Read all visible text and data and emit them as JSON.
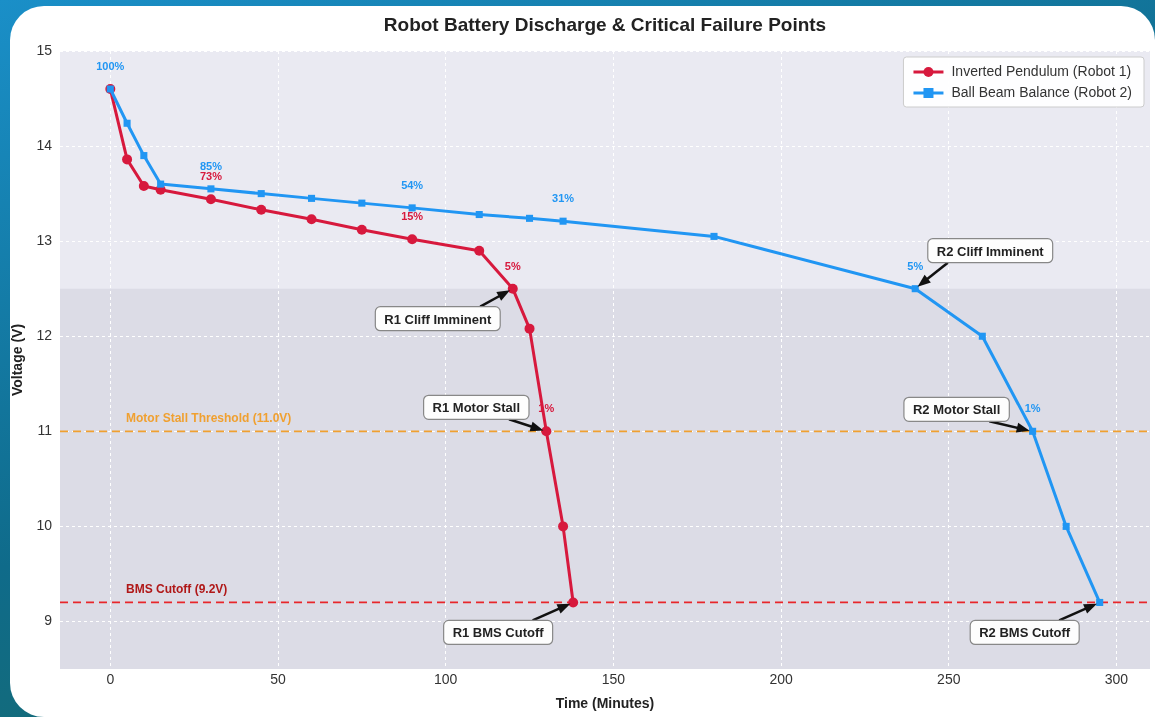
{
  "chart_data": {
    "type": "line",
    "title": "Robot Battery Discharge & Critical Failure Points",
    "xlabel": "Time (Minutes)",
    "ylabel": "Voltage (V)",
    "xlim": [
      -15,
      310
    ],
    "xticks": [
      0,
      50,
      100,
      150,
      200,
      250,
      300
    ],
    "ylim": [
      8.5,
      15
    ],
    "yticks": [
      9,
      10,
      11,
      12,
      13,
      14,
      15
    ],
    "grid": true,
    "legend": "top right",
    "line_style": "solid",
    "series": [
      {
        "name": "Inverted Pendulum (Robot 1)",
        "color": "#d7193d",
        "marker": "circle",
        "x": [
          0,
          5,
          10,
          15,
          30,
          45,
          60,
          75,
          90,
          110,
          120,
          125,
          130,
          135,
          138
        ],
        "values": [
          14.6,
          13.86,
          13.58,
          13.54,
          13.44,
          13.33,
          13.23,
          13.12,
          13.02,
          12.9,
          12.5,
          12.08,
          11.0,
          10.0,
          9.2
        ]
      },
      {
        "name": "Ball Beam Balance (Robot 2)",
        "color": "#2196f3",
        "marker": "square",
        "x": [
          0,
          5,
          10,
          15,
          30,
          45,
          60,
          75,
          90,
          110,
          125,
          135,
          180,
          240,
          260,
          275,
          285,
          295
        ],
        "values": [
          14.6,
          14.24,
          13.9,
          13.6,
          13.55,
          13.5,
          13.45,
          13.4,
          13.35,
          13.28,
          13.24,
          13.21,
          13.05,
          12.5,
          12.0,
          11.0,
          10.0,
          9.2
        ]
      }
    ],
    "ref_lines": [
      {
        "axis": "y",
        "value": 11.0,
        "label": "Motor Stall Threshold (11.0V)",
        "color": "#f0a030",
        "line_style": "dashed"
      },
      {
        "axis": "y",
        "value": 9.2,
        "label": "BMS Cutoff (9.2V)",
        "color": "#e8262b",
        "line_style": "dashed"
      }
    ],
    "bands": [
      {
        "axis": "y",
        "from": 8.5,
        "to": 12.5,
        "color": "#dcdce6"
      }
    ],
    "annotations": [
      {
        "text": "R1 Cliff Imminent",
        "x": 120,
        "y": 12.5
      },
      {
        "text": "R1 Motor Stall",
        "x": 130,
        "y": 11.0
      },
      {
        "text": "R1 BMS Cutoff",
        "x": 138,
        "y": 9.2
      },
      {
        "text": "R2 Cliff Imminent",
        "x": 240,
        "y": 12.5
      },
      {
        "text": "R2 Motor Stall",
        "x": 275,
        "y": 11.0
      },
      {
        "text": "R2 BMS Cutoff",
        "x": 295,
        "y": 9.2
      },
      {
        "text": "100%",
        "x": 0,
        "y": 14.6
      },
      {
        "text": "85%",
        "x": 30,
        "y": 13.55
      },
      {
        "text": "54%",
        "x": 90,
        "y": 13.35
      },
      {
        "text": "31%",
        "x": 135,
        "y": 13.21
      },
      {
        "text": "5%",
        "x": 240,
        "y": 12.5
      },
      {
        "text": "1%",
        "x": 275,
        "y": 11.0
      },
      {
        "text": "73%",
        "x": 30,
        "y": 13.44
      },
      {
        "text": "15%",
        "x": 90,
        "y": 13.02
      },
      {
        "text": "5%",
        "x": 120,
        "y": 12.5
      },
      {
        "text": "1%",
        "x": 130,
        "y": 11.0
      }
    ]
  }
}
